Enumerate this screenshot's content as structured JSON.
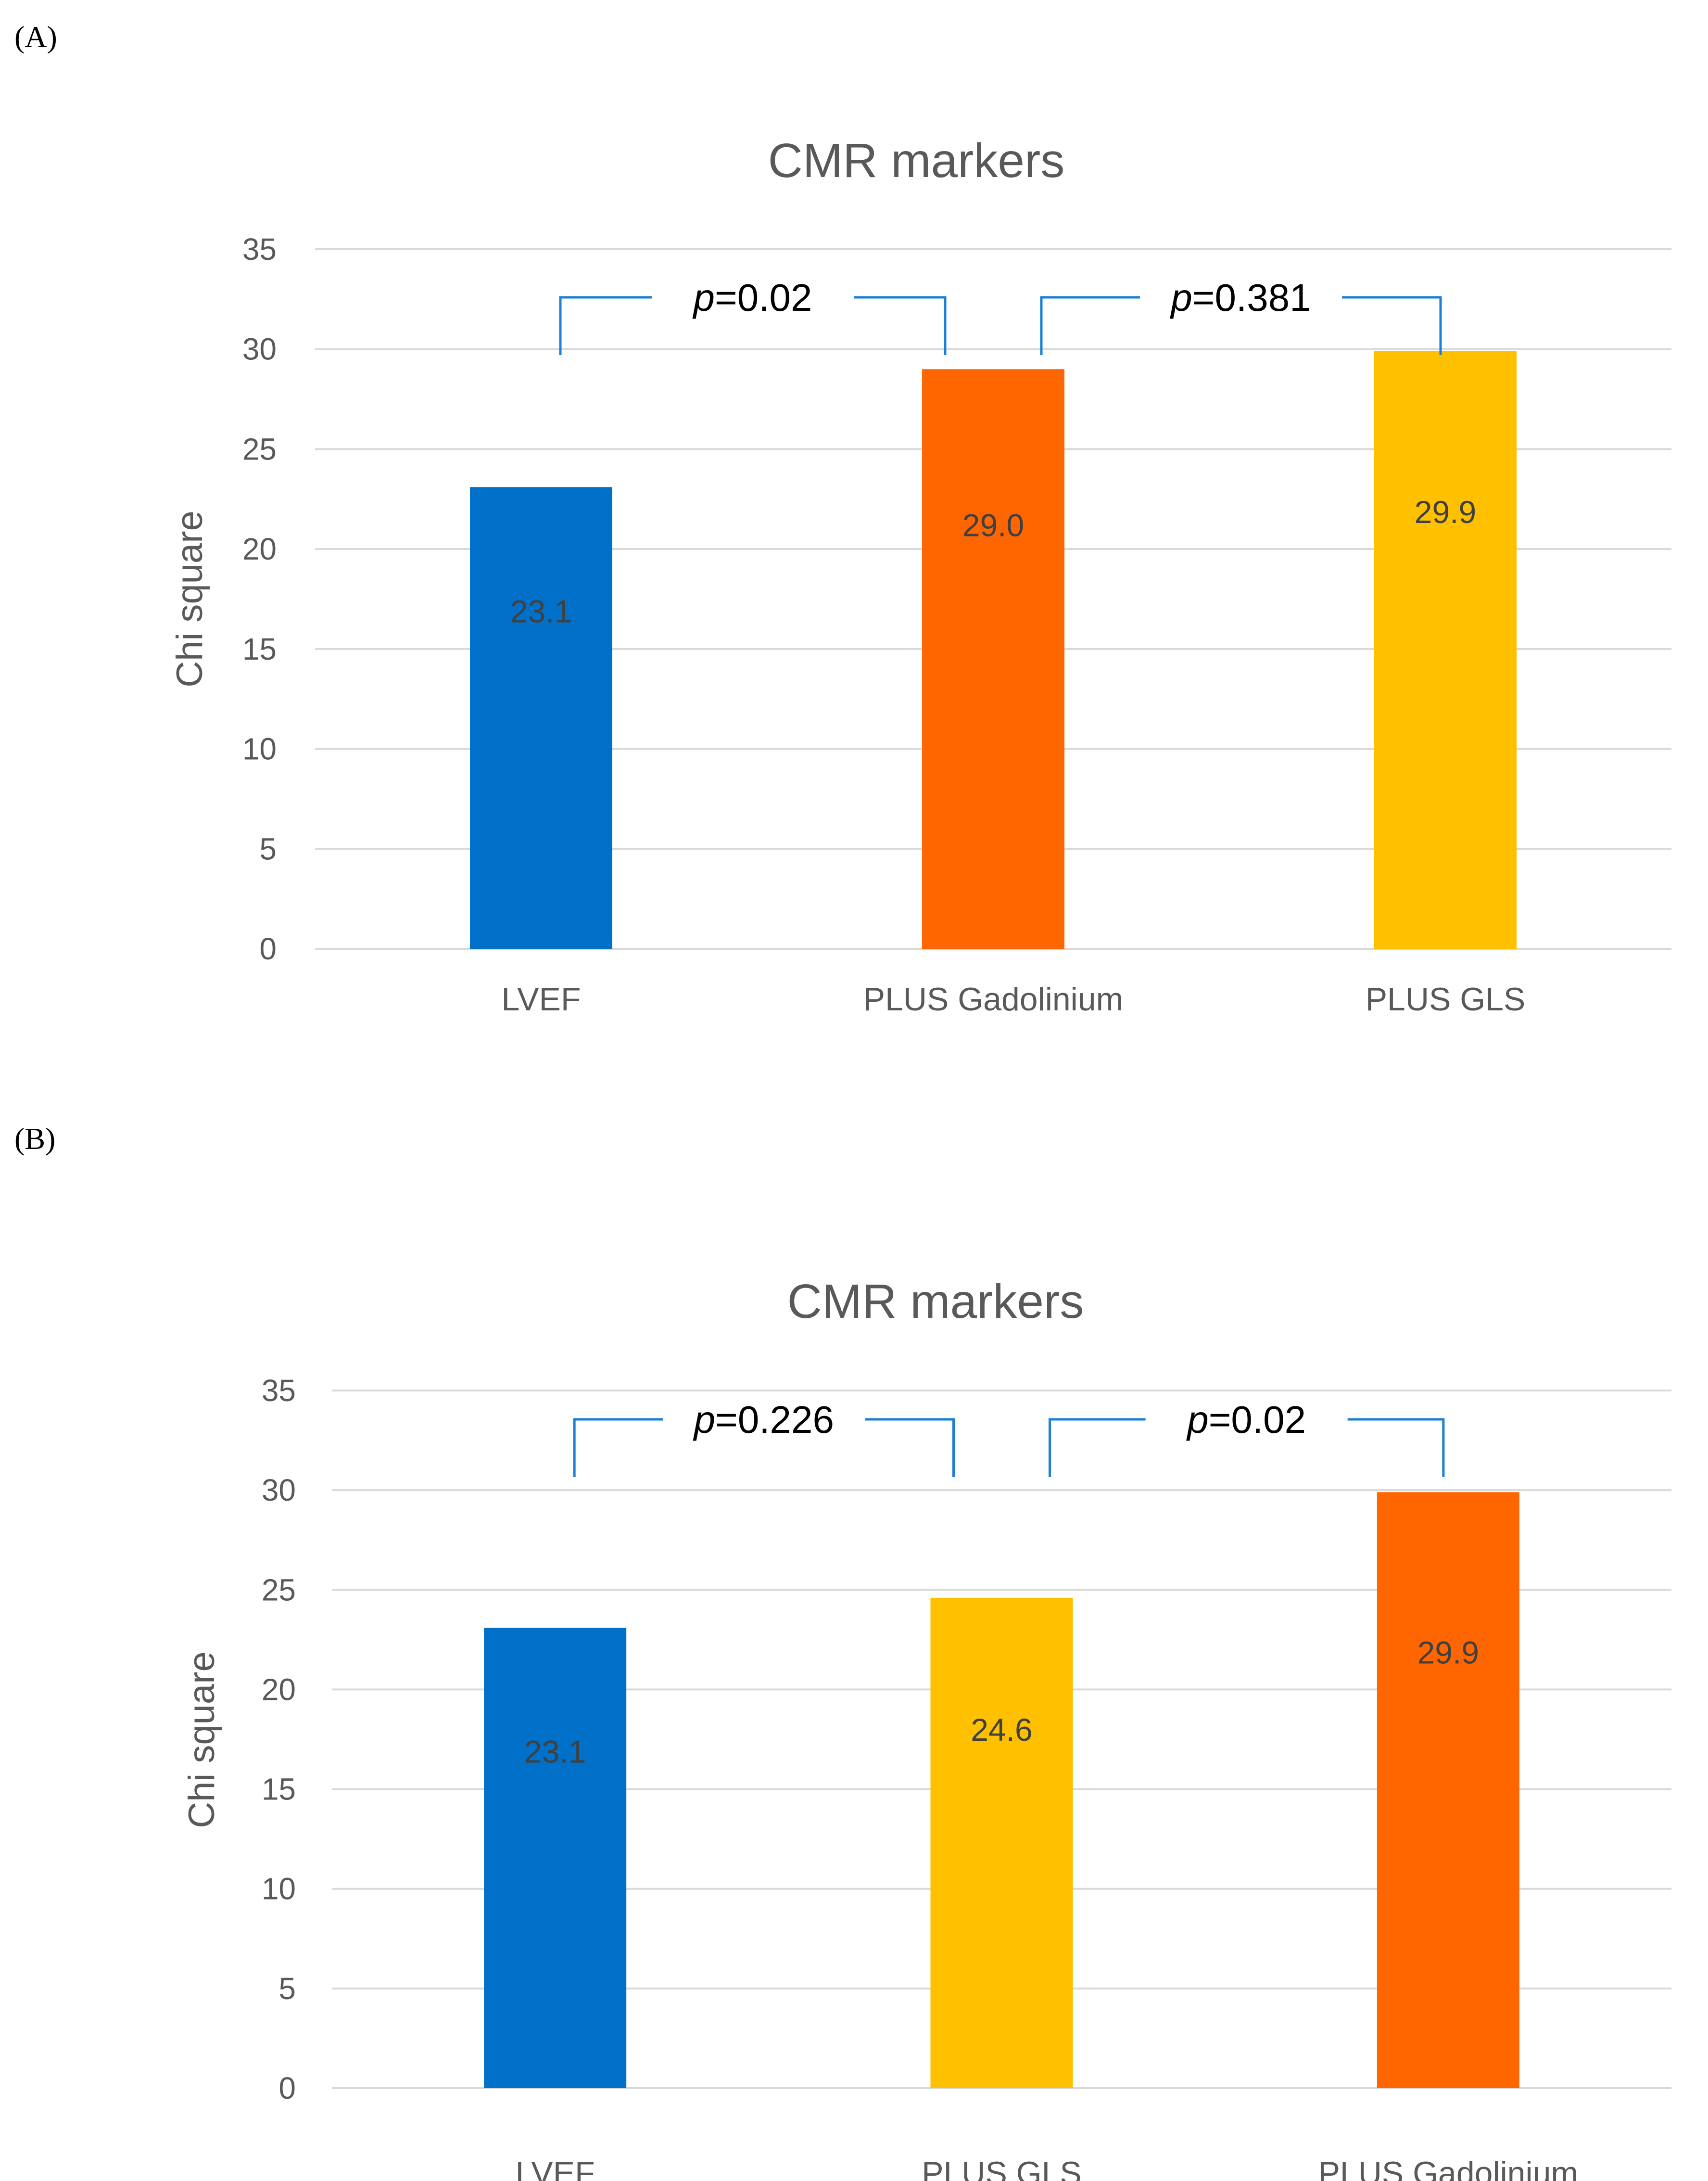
{
  "panels": [
    {
      "label": "(A)",
      "chart_data": {
        "type": "bar",
        "title": "CMR markers",
        "xlabel": "",
        "ylabel": "Chi square",
        "ylim": [
          0,
          35
        ],
        "yticks": [
          0,
          5,
          10,
          15,
          20,
          25,
          30,
          35
        ],
        "grid": true,
        "categories": [
          "LVEF",
          "PLUS Gadolinium",
          "PLUS GLS"
        ],
        "values": [
          23.1,
          29.0,
          29.9
        ],
        "value_labels": [
          "23.1",
          "29.0",
          "29.9"
        ],
        "colors": [
          "#0070c9",
          "#ff6600",
          "#ffc000"
        ],
        "annotations": [
          {
            "from": 0,
            "to": 1,
            "p_italic": "p",
            "text": "=0.02"
          },
          {
            "from": 1,
            "to": 2,
            "p_italic": "p",
            "text": "=0.381"
          }
        ]
      }
    },
    {
      "label": "(B)",
      "chart_data": {
        "type": "bar",
        "title": "CMR markers",
        "xlabel": "",
        "ylabel": "Chi square",
        "ylim": [
          0,
          35
        ],
        "yticks": [
          0,
          5,
          10,
          15,
          20,
          25,
          30,
          35
        ],
        "grid": true,
        "categories": [
          "LVEF",
          "PLUS GLS",
          "PLUS Gadolinium"
        ],
        "values": [
          23.1,
          24.6,
          29.9
        ],
        "value_labels": [
          "23.1",
          "24.6",
          "29.9"
        ],
        "colors": [
          "#0070c9",
          "#ffc000",
          "#ff6600"
        ],
        "annotations": [
          {
            "from": 0,
            "to": 1,
            "p_italic": "p",
            "text": "=0.226"
          },
          {
            "from": 1,
            "to": 2,
            "p_italic": "p",
            "text": "=0.02"
          }
        ]
      }
    }
  ]
}
